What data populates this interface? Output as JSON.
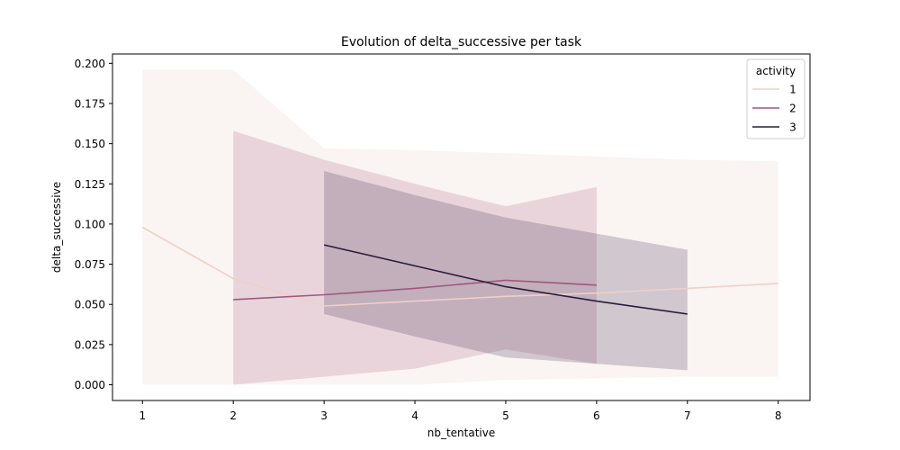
{
  "chart_data": {
    "type": "line",
    "title": "Evolution of delta_successive per task",
    "xlabel": "nb_tentative",
    "ylabel": "delta_successive",
    "xlim": [
      0.67,
      8.35
    ],
    "ylim": [
      -0.0098,
      0.2058
    ],
    "x_ticks": [
      1,
      2,
      3,
      4,
      5,
      6,
      7,
      8
    ],
    "y_ticks": [
      0.0,
      0.025,
      0.05,
      0.075,
      0.1,
      0.125,
      0.15,
      0.175,
      0.2
    ],
    "y_tick_labels": [
      "0.000",
      "0.025",
      "0.050",
      "0.075",
      "0.100",
      "0.125",
      "0.150",
      "0.175",
      "0.200"
    ],
    "grid": false,
    "legend": {
      "title": "activity",
      "placement": "top-right"
    },
    "series": [
      {
        "name": "1",
        "color": "#efcfc9",
        "band_color": "#f9f2f0",
        "band_opacity": 0.85,
        "x": [
          1,
          2,
          3,
          4,
          5,
          6,
          7,
          8
        ],
        "values": [
          0.098,
          0.066,
          0.049,
          0.052,
          0.055,
          0.057,
          0.06,
          0.063
        ],
        "lower": [
          0.0,
          0.0,
          0.0,
          0.0,
          0.003,
          0.004,
          0.005,
          0.005
        ],
        "upper": [
          0.196,
          0.196,
          0.147,
          0.146,
          0.144,
          0.142,
          0.14,
          0.139
        ]
      },
      {
        "name": "2",
        "color": "#a0577e",
        "band_color": "#a0577e",
        "band_opacity": 0.2,
        "x": [
          2,
          3,
          4,
          5,
          6
        ],
        "values": [
          0.053,
          0.056,
          0.06,
          0.065,
          0.062
        ],
        "lower": [
          0.0,
          0.005,
          0.01,
          0.022,
          0.013
        ],
        "upper": [
          0.158,
          0.14,
          0.125,
          0.111,
          0.123
        ]
      },
      {
        "name": "3",
        "color": "#2b1d3b",
        "band_color": "#3d2c4f",
        "band_opacity": 0.22,
        "x": [
          3,
          4,
          5,
          6,
          7
        ],
        "values": [
          0.087,
          0.074,
          0.061,
          0.052,
          0.044
        ],
        "lower": [
          0.044,
          0.03,
          0.017,
          0.013,
          0.009
        ],
        "upper": [
          0.133,
          0.118,
          0.104,
          0.094,
          0.084
        ]
      }
    ]
  }
}
